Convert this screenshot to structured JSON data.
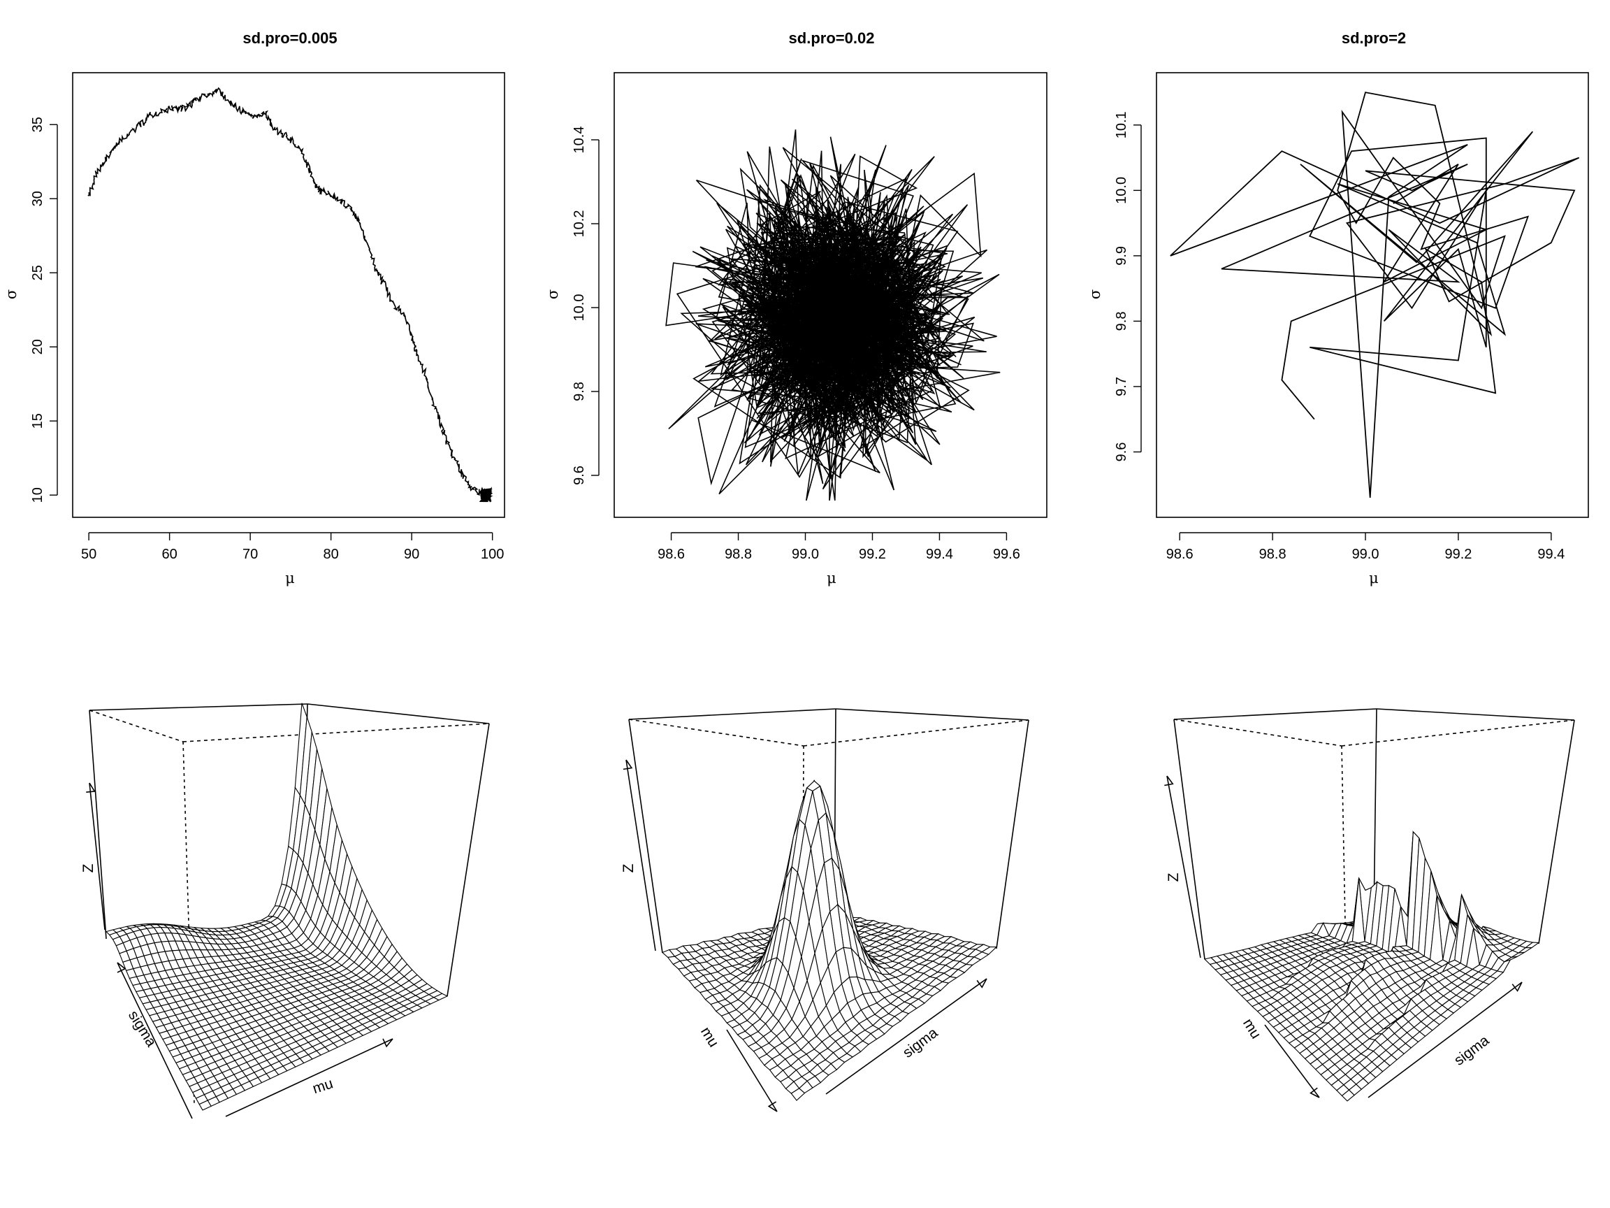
{
  "chart_data": [
    {
      "type": "line",
      "title": "sd.pro=0.005",
      "xlabel": "μ",
      "ylabel": "σ",
      "xlim": [
        48,
        101.5
      ],
      "ylim": [
        8.5,
        38.5
      ],
      "xticks": [
        50,
        60,
        70,
        80,
        90,
        100
      ],
      "yticks": [
        10,
        15,
        20,
        25,
        30,
        35
      ],
      "x": [
        50,
        51,
        52.5,
        54,
        56,
        57.5,
        59,
        60.5,
        62,
        63,
        64.5,
        66,
        67.5,
        69,
        70.5,
        72,
        73,
        74.5,
        76,
        77,
        78,
        78.5,
        79.5,
        81,
        82.5,
        83.5,
        84.5,
        85.5,
        86.5,
        87.5,
        89,
        90,
        90.5,
        91.5,
        92.5,
        93.5,
        94.5,
        95.5,
        96.5,
        97.5,
        98.5,
        99,
        99.5,
        98.8,
        99.4,
        99.0
      ],
      "y": [
        30,
        31.8,
        32.9,
        34,
        34.8,
        35.6,
        35.9,
        36.1,
        36.1,
        36.6,
        37.0,
        37.3,
        36.5,
        35.9,
        35.6,
        35.8,
        34.6,
        34.2,
        33.5,
        32.4,
        31.0,
        30.6,
        30.4,
        30.0,
        29.3,
        28.4,
        27.0,
        25.3,
        24.3,
        23.0,
        22.3,
        20.8,
        19.8,
        18.5,
        16.5,
        15.0,
        13.4,
        12.3,
        11.2,
        10.5,
        10.1,
        9.9,
        10.2,
        9.85,
        10.1,
        9.95
      ]
    },
    {
      "type": "line",
      "title": "sd.pro=0.02",
      "xlabel": "μ",
      "ylabel": "σ",
      "xlim": [
        98.43,
        99.72
      ],
      "ylim": [
        9.5,
        10.56
      ],
      "xticks": [
        "98.6",
        "98.8",
        "99.0",
        "99.2",
        "99.4",
        "99.6"
      ],
      "yticks": [
        "9.6",
        "9.8",
        "10.0",
        "10.2",
        "10.4"
      ],
      "center": [
        99.1,
        9.97
      ],
      "spread": [
        0.17,
        0.15
      ],
      "range": [
        [
          98.47,
          99.68
        ],
        [
          9.54,
          10.54
        ]
      ]
    },
    {
      "type": "line",
      "title": "sd.pro=2",
      "xlabel": "μ",
      "ylabel": "σ",
      "xlim": [
        98.55,
        99.48
      ],
      "ylim": [
        9.5,
        10.18
      ],
      "xticks": [
        "98.6",
        "98.8",
        "99.0",
        "99.2",
        "99.4"
      ],
      "yticks": [
        "9.6",
        "9.7",
        "9.8",
        "9.9",
        "10.0",
        "10.1"
      ],
      "x": [
        98.89,
        98.82,
        98.84,
        99.3,
        99.25,
        98.95,
        99.01,
        99.05,
        99.22,
        98.58,
        98.82,
        99.16,
        99.46,
        99.3,
        98.96,
        99.1,
        99.26,
        99.2,
        98.88,
        99.28,
        99.25,
        99.13,
        99.18,
        99.4,
        99.45,
        99.0,
        99.1,
        99.22,
        98.69,
        99.2,
        99.05,
        99.27,
        99.15,
        99.0,
        98.94,
        98.98,
        99.06,
        99.16,
        99.12,
        99.35,
        99.28,
        98.88,
        98.97,
        99.26,
        99.26,
        99.2,
        99.04,
        99.36,
        99.11,
        98.86,
        99.3,
        99.24,
        98.94,
        99.26,
        99.04,
        99.2,
        99.06
      ],
      "y": [
        9.65,
        9.71,
        9.8,
        9.93,
        9.82,
        10.12,
        9.53,
        9.99,
        10.07,
        9.9,
        10.06,
        9.95,
        10.05,
        10.01,
        9.95,
        9.82,
        10.0,
        9.74,
        9.76,
        9.69,
        9.86,
        9.91,
        9.83,
        9.92,
        10.0,
        10.03,
        10.0,
        10.04,
        9.88,
        9.86,
        9.94,
        9.78,
        10.13,
        10.15,
        10.0,
        9.95,
        10.05,
        9.98,
        9.91,
        9.96,
        9.82,
        9.93,
        10.06,
        10.08,
        9.76,
        9.91,
        9.8,
        10.09,
        9.89,
        10.04,
        9.78,
        9.92,
        10.01,
        9.94,
        9.86,
        10.04,
        9.98
      ]
    }
  ],
  "persp_plots": [
    {
      "xlabel": "mu",
      "ylabel": "sigma",
      "zlabel": "Z",
      "surface": "flat floor rising steeply to a peak at the far-right corner, with a broad low hump along the back edge"
    },
    {
      "xlabel": "mu",
      "ylabel": "sigma",
      "zlabel": "Z",
      "surface": "single tall peak in the middle of the grid"
    },
    {
      "xlabel": "mu",
      "ylabel": "sigma",
      "zlabel": "Z",
      "surface": "many narrow spikes scattered across the grid"
    }
  ]
}
